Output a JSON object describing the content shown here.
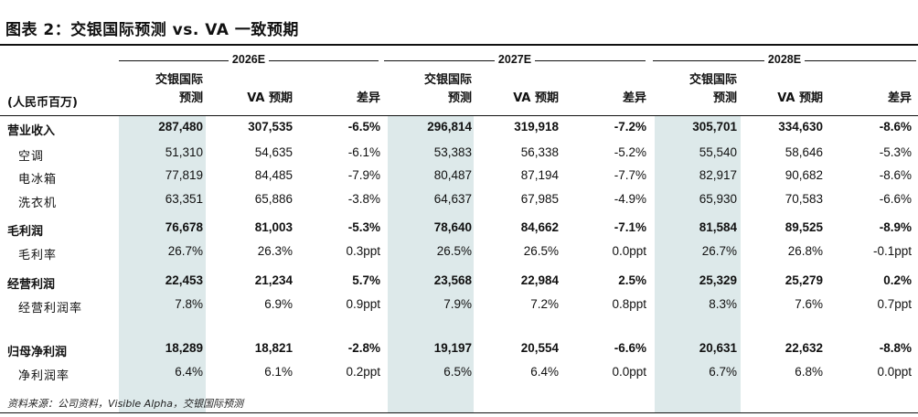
{
  "title": "图表 2：交银国际预测 vs. VA 一致预期",
  "unit_label": "(人民币百万)",
  "years": [
    "2026E",
    "2027E",
    "2028E"
  ],
  "column_headers": {
    "bocom_line1": "交银国际",
    "bocom_line2": "预测",
    "va": "VA 预期",
    "diff": "差异"
  },
  "rows": [
    {
      "label": "营业收入",
      "bold": true,
      "values": [
        "287,480",
        "307,535",
        "-6.5%",
        "296,814",
        "319,918",
        "-7.2%",
        "305,701",
        "334,630",
        "-8.6%"
      ]
    },
    {
      "label": "空调",
      "bold": false,
      "values": [
        "51,310",
        "54,635",
        "-6.1%",
        "53,383",
        "56,338",
        "-5.2%",
        "55,540",
        "58,646",
        "-5.3%"
      ]
    },
    {
      "label": "电冰箱",
      "bold": false,
      "values": [
        "77,819",
        "84,485",
        "-7.9%",
        "80,487",
        "87,194",
        "-7.7%",
        "82,917",
        "90,682",
        "-8.6%"
      ]
    },
    {
      "label": "洗衣机",
      "bold": false,
      "values": [
        "63,351",
        "65,886",
        "-3.8%",
        "64,637",
        "67,985",
        "-4.9%",
        "65,930",
        "70,583",
        "-6.6%"
      ]
    },
    {
      "label": "毛利润",
      "bold": true,
      "values": [
        "76,678",
        "81,003",
        "-5.3%",
        "78,640",
        "84,662",
        "-7.1%",
        "81,584",
        "89,525",
        "-8.9%"
      ]
    },
    {
      "label": "毛利率",
      "bold": false,
      "values": [
        "26.7%",
        "26.3%",
        "0.3ppt",
        "26.5%",
        "26.5%",
        "0.0ppt",
        "26.7%",
        "26.8%",
        "-0.1ppt"
      ]
    },
    {
      "label": "经营利润",
      "bold": true,
      "values": [
        "22,453",
        "21,234",
        "5.7%",
        "23,568",
        "22,984",
        "2.5%",
        "25,329",
        "25,279",
        "0.2%"
      ]
    },
    {
      "label": "经营利润率",
      "bold": false,
      "values": [
        "7.8%",
        "6.9%",
        "0.9ppt",
        "7.9%",
        "7.2%",
        "0.8ppt",
        "8.3%",
        "7.6%",
        "0.7ppt"
      ]
    },
    {
      "label": "归母净利润",
      "bold": true,
      "values": [
        "18,289",
        "18,821",
        "-2.8%",
        "19,197",
        "20,554",
        "-6.6%",
        "20,631",
        "22,632",
        "-8.8%"
      ]
    },
    {
      "label": "净利润率",
      "bold": false,
      "values": [
        "6.4%",
        "6.1%",
        "0.2ppt",
        "6.5%",
        "6.4%",
        "0.0ppt",
        "6.7%",
        "6.8%",
        "0.0ppt"
      ]
    }
  ],
  "source": "资料来源：公司资料，Visible Alpha，交银国际预测",
  "colors": {
    "shade": "#dde9ea",
    "text": "#111111"
  }
}
